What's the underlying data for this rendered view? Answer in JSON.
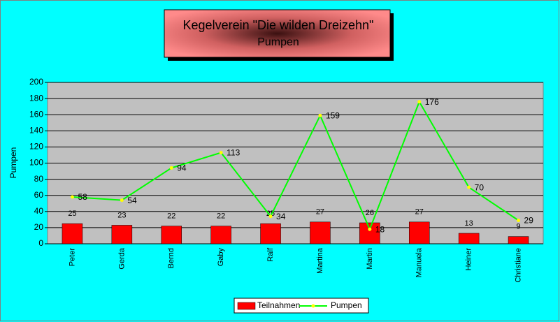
{
  "chart_data": {
    "type": "combo",
    "title": "Kegelverein \"Die wilden Dreizehn\"",
    "subtitle": "Pumpen",
    "y_label": "Pumpen",
    "categories": [
      "Peter",
      "Gerda",
      "Bernd",
      "Gaby",
      "Ralf",
      "Martina",
      "Martin",
      "Manuela",
      "Heiner",
      "Christiane"
    ],
    "series": [
      {
        "name": "Teilnahmen",
        "type": "bar",
        "color": "#ff0000",
        "values": [
          25,
          23,
          22,
          22,
          25,
          27,
          26,
          27,
          13,
          9
        ]
      },
      {
        "name": "Pumpen",
        "type": "line",
        "color": "#00ff00",
        "marker_color": "#ffff00",
        "values": [
          58,
          54,
          94,
          113,
          34,
          159,
          18,
          176,
          70,
          29
        ]
      }
    ],
    "ylim": [
      0,
      200
    ],
    "yticks": [
      0,
      20,
      40,
      60,
      80,
      100,
      120,
      140,
      160,
      180,
      200
    ],
    "grid": true,
    "legend": "bottom"
  }
}
